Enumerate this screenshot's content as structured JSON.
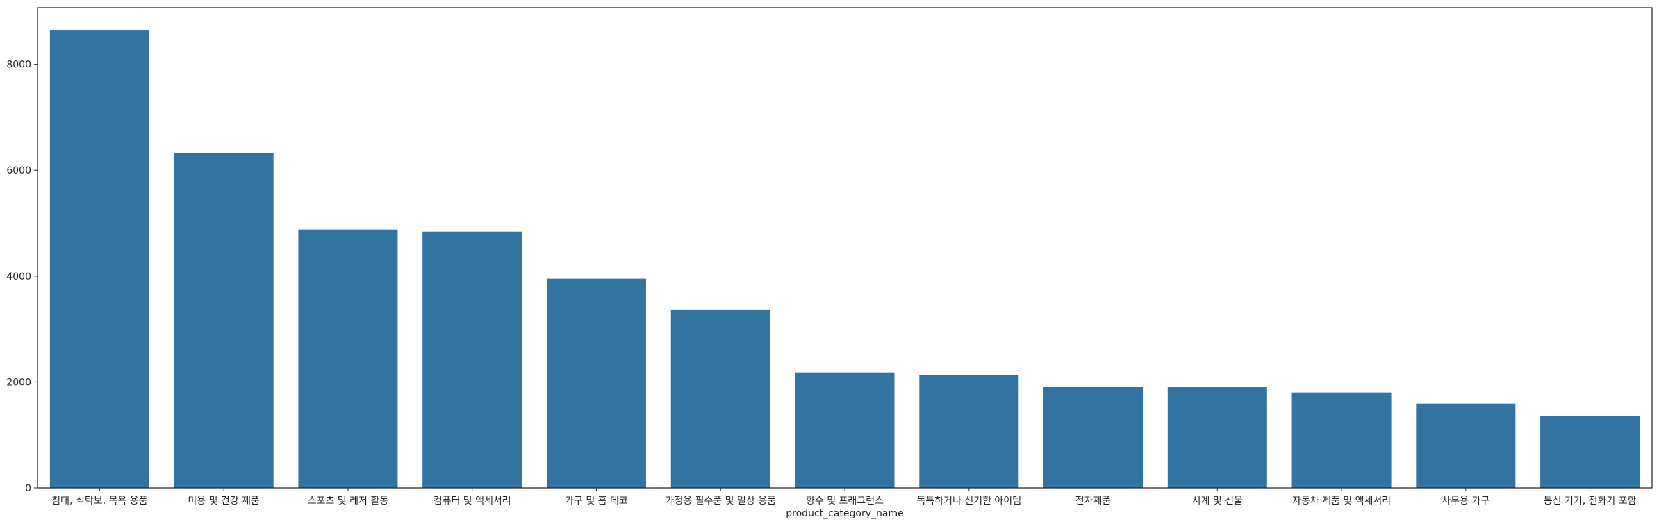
{
  "chart_data": {
    "type": "bar",
    "title": "",
    "xlabel": "product_category_name",
    "ylabel": "",
    "categories": [
      "침대, 식탁보, 목욕 용품",
      "미용 및 건강 제품",
      "스포츠 및 레저 활동",
      "컴퓨터 및 액세서리",
      "가구 및 홈 데코",
      "가정용 필수품 및 일상 용품",
      "향수 및 프래그런스",
      "독특하거나 신기한 아이템",
      "전자제품",
      "시계 및 선물",
      "자동차 제품 및 액세서리",
      "사무용 가구",
      "통신 기기, 전화기 포함"
    ],
    "values": [
      8650,
      6320,
      4880,
      4840,
      3950,
      3370,
      2180,
      2130,
      1910,
      1900,
      1800,
      1590,
      1360
    ],
    "ylim": [
      0,
      9070
    ],
    "yticks": [
      "0",
      "2000",
      "4000",
      "6000",
      "8000"
    ],
    "grid": false,
    "colors": {
      "bar": "#3274a1",
      "axis": "#262626"
    }
  }
}
